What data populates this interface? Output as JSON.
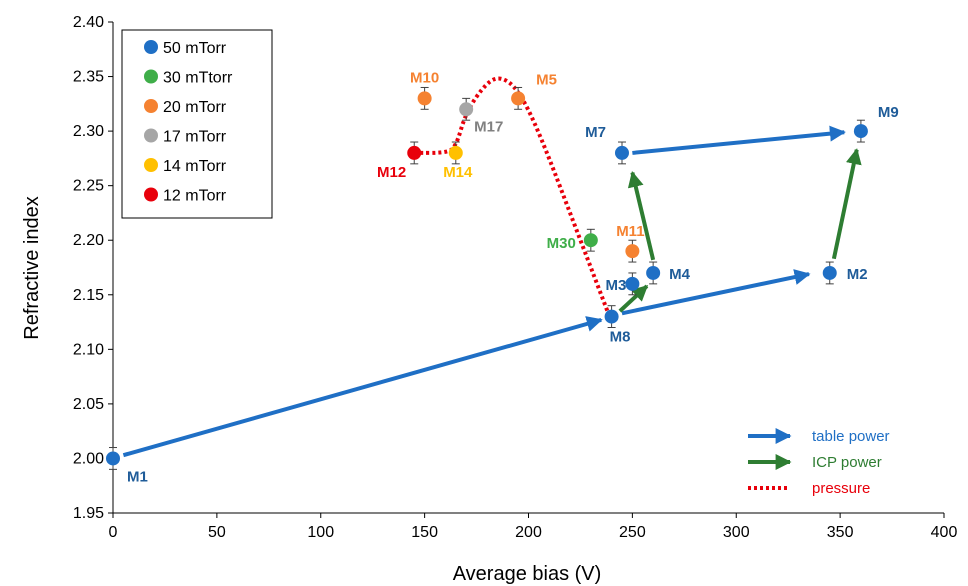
{
  "chart_data": {
    "type": "scatter",
    "xlabel": "Average bias (V)",
    "ylabel": "Refractive index",
    "xlim": [
      0,
      400
    ],
    "ylim": [
      1.95,
      2.4
    ],
    "x_ticks": [
      "0",
      "50",
      "100",
      "150",
      "200",
      "250",
      "300",
      "350",
      "400"
    ],
    "y_ticks": [
      "1.95",
      "2.00",
      "2.05",
      "2.10",
      "2.15",
      "2.20",
      "2.25",
      "2.30",
      "2.35",
      "2.40"
    ],
    "grid": false,
    "legend_position": "top-left",
    "series": [
      {
        "name": "50 mTorr",
        "color": "#1f6fc5"
      },
      {
        "name": "30 mTtorr",
        "color": "#3fae49"
      },
      {
        "name": "20 mTorr",
        "color": "#f58231"
      },
      {
        "name": "17 mTorr",
        "color": "#a6a6a6"
      },
      {
        "name": "14 mTorr",
        "color": "#ffc000"
      },
      {
        "name": "12 mTorr",
        "color": "#e8000b"
      }
    ],
    "points": [
      {
        "label": "M1",
        "x": 0,
        "y": 2.0,
        "err": 0.01,
        "color": "#1f6fc5",
        "label_color": "#1f5c99"
      },
      {
        "label": "M2",
        "x": 345,
        "y": 2.17,
        "err": 0.01,
        "color": "#1f6fc5",
        "label_color": "#1f5c99"
      },
      {
        "label": "M3",
        "x": 250,
        "y": 2.16,
        "err": 0.01,
        "color": "#1f6fc5",
        "label_color": "#1f5c99"
      },
      {
        "label": "M4",
        "x": 260,
        "y": 2.17,
        "err": 0.01,
        "color": "#1f6fc5",
        "label_color": "#1f5c99"
      },
      {
        "label": "M5",
        "x": 195,
        "y": 2.33,
        "err": 0.01,
        "color": "#f58231",
        "label_color": "#f58231"
      },
      {
        "label": "M7",
        "x": 245,
        "y": 2.28,
        "err": 0.01,
        "color": "#1f6fc5",
        "label_color": "#1f5c99"
      },
      {
        "label": "M8",
        "x": 240,
        "y": 2.13,
        "err": 0.01,
        "color": "#1f6fc5",
        "label_color": "#1f5c99"
      },
      {
        "label": "M9",
        "x": 360,
        "y": 2.3,
        "err": 0.01,
        "color": "#1f6fc5",
        "label_color": "#1f5c99"
      },
      {
        "label": "M10",
        "x": 150,
        "y": 2.33,
        "err": 0.01,
        "color": "#f58231",
        "label_color": "#f58231"
      },
      {
        "label": "M11",
        "x": 250,
        "y": 2.19,
        "err": 0.01,
        "color": "#f58231",
        "label_color": "#f58231"
      },
      {
        "label": "M12",
        "x": 145,
        "y": 2.28,
        "err": 0.01,
        "color": "#e8000b",
        "label_color": "#e8000b"
      },
      {
        "label": "M14",
        "x": 165,
        "y": 2.28,
        "err": 0.01,
        "color": "#ffc000",
        "label_color": "#ffc000"
      },
      {
        "label": "M17",
        "x": 170,
        "y": 2.32,
        "err": 0.01,
        "color": "#a6a6a6",
        "label_color": "#808080"
      },
      {
        "label": "M30",
        "x": 230,
        "y": 2.2,
        "err": 0.01,
        "color": "#3fae49",
        "label_color": "#3fae49"
      }
    ],
    "arrows": [
      {
        "type": "table power",
        "from": [
          5,
          2.003
        ],
        "to": [
          235,
          2.127
        ],
        "color": "#1f6fc5"
      },
      {
        "type": "table power",
        "from": [
          245,
          2.133
        ],
        "to": [
          335,
          2.169
        ],
        "color": "#1f6fc5"
      },
      {
        "type": "table power",
        "from": [
          250,
          2.28
        ],
        "to": [
          352,
          2.299
        ],
        "color": "#1f6fc5"
      },
      {
        "type": "ICP power",
        "from": [
          244,
          2.135
        ],
        "to": [
          257,
          2.158
        ],
        "color": "#2e7d32"
      },
      {
        "type": "ICP power",
        "from": [
          260,
          2.182
        ],
        "to": [
          250,
          2.262
        ],
        "color": "#2e7d32"
      },
      {
        "type": "ICP power",
        "from": [
          347,
          2.183
        ],
        "to": [
          358,
          2.283
        ],
        "color": "#2e7d32"
      }
    ],
    "pressure_path": [
      [
        145,
        2.28
      ],
      [
        160,
        2.28
      ],
      [
        165,
        2.285
      ],
      [
        170,
        2.318
      ],
      [
        180,
        2.345
      ],
      [
        187,
        2.35
      ],
      [
        195,
        2.338
      ],
      [
        205,
        2.3
      ],
      [
        225,
        2.2
      ],
      [
        238,
        2.135
      ]
    ],
    "legend2": [
      {
        "label": "table power",
        "style": "arrow",
        "color": "#1f6fc5"
      },
      {
        "label": "ICP power",
        "style": "arrow",
        "color": "#2e7d32"
      },
      {
        "label": "pressure",
        "style": "dotted",
        "color": "#e8000b"
      }
    ]
  }
}
